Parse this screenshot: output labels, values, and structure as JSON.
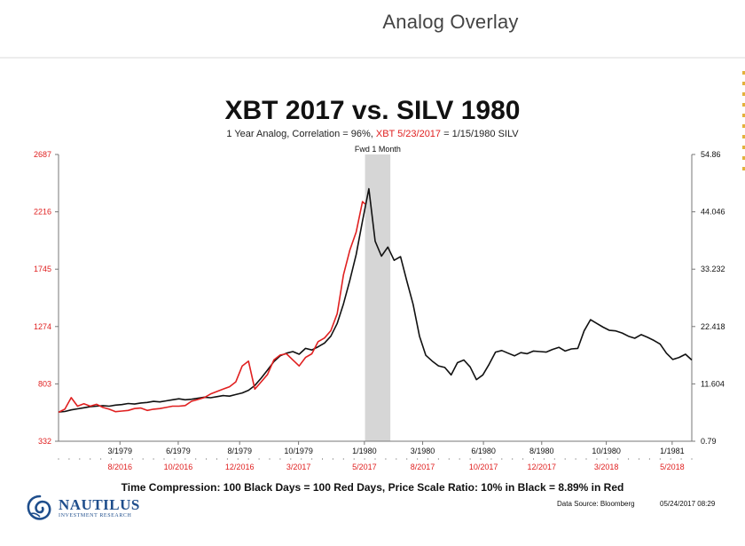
{
  "slide_title": "Analog Overlay",
  "footer_note": "Time Compression: 100 Black Days = 100 Red Days,  Price Scale Ratio: 10% in Black = 8.89% in Red",
  "data_source": "Data Source: Bloomberg",
  "timestamp": "05/24/2017 08:29",
  "logo": {
    "name": "NAUTILUS",
    "subtitle": "INVESTMENT RESEARCH"
  },
  "colors": {
    "black_series": "#111111",
    "red_series": "#e02020",
    "shade": "#d6d6d6"
  },
  "chart_data": {
    "type": "line",
    "title": "XBT 2017 vs. SILV 1980",
    "subtitle_parts": [
      "1 Year Analog, Correlation = 96%, ",
      "XBT 5/23/2017",
      "  = 1/15/1980 SILV"
    ],
    "annotation": "Fwd 1 Month",
    "grid": false,
    "x_range": [
      0,
      100
    ],
    "shaded_region": [
      48.4,
      52.4
    ],
    "top_ticks": [
      {
        "x": 9.7,
        "label": "3/1979"
      },
      {
        "x": 18.9,
        "label": "6/1979"
      },
      {
        "x": 28.6,
        "label": "8/1979"
      },
      {
        "x": 37.9,
        "label": "10/1979"
      },
      {
        "x": 48.3,
        "label": "1/1980"
      },
      {
        "x": 57.5,
        "label": "3/1980"
      },
      {
        "x": 67.1,
        "label": "6/1980"
      },
      {
        "x": 76.3,
        "label": "8/1980"
      },
      {
        "x": 86.5,
        "label": "10/1980"
      },
      {
        "x": 96.9,
        "label": "1/1981"
      }
    ],
    "bottom_ticks": [
      {
        "x": 9.7,
        "label": "8/2016"
      },
      {
        "x": 18.9,
        "label": "10/2016"
      },
      {
        "x": 28.6,
        "label": "12/2016"
      },
      {
        "x": 37.9,
        "label": "3/2017"
      },
      {
        "x": 48.3,
        "label": "5/2017"
      },
      {
        "x": 57.5,
        "label": "8/2017"
      },
      {
        "x": 67.1,
        "label": "10/2017"
      },
      {
        "x": 76.3,
        "label": "12/2017"
      },
      {
        "x": 86.5,
        "label": "3/2018"
      },
      {
        "x": 96.9,
        "label": "5/2018"
      }
    ],
    "left_axis": {
      "ticks": [
        "332",
        "803",
        "1274",
        "1745",
        "2216",
        "2687"
      ],
      "range": [
        332,
        2687
      ]
    },
    "right_axis": {
      "ticks": [
        "0.79",
        "11.604",
        "22.418",
        "33.232",
        "44.046",
        "54.86"
      ],
      "range": [
        0.79,
        54.86
      ]
    },
    "series": [
      {
        "axis": "right",
        "x": [
          0,
          1,
          2,
          3,
          4,
          5,
          6,
          7,
          8,
          9,
          10,
          11,
          12,
          13,
          14,
          15,
          16,
          17,
          18,
          19,
          20,
          21,
          22,
          23,
          24,
          25,
          26,
          27,
          28,
          29,
          30,
          31,
          32,
          33,
          34,
          35,
          36,
          37,
          38,
          39,
          40,
          41,
          42,
          43,
          44,
          45,
          46,
          47,
          48,
          49,
          50,
          51,
          52,
          53,
          54,
          55,
          56,
          57,
          58,
          59,
          60,
          61,
          62,
          63,
          64,
          65,
          66,
          67,
          68,
          69,
          70,
          71,
          72,
          73,
          74,
          75,
          76,
          77,
          78,
          79,
          80,
          81,
          82,
          83,
          84,
          85,
          86,
          87,
          88,
          89,
          90,
          91,
          92,
          93,
          94,
          95,
          96,
          97,
          98,
          99,
          100
        ],
        "values": [
          6.3,
          6.4,
          6.7,
          6.9,
          7.1,
          7.3,
          7.4,
          7.5,
          7.4,
          7.6,
          7.7,
          7.9,
          7.8,
          8.0,
          8.1,
          8.3,
          8.2,
          8.4,
          8.6,
          8.8,
          8.6,
          8.7,
          8.9,
          9.1,
          9.0,
          9.2,
          9.4,
          9.3,
          9.6,
          9.9,
          10.4,
          11.3,
          12.7,
          14.2,
          15.8,
          16.9,
          17.4,
          17.7,
          17.2,
          18.3,
          18.0,
          18.6,
          19.3,
          20.6,
          23.0,
          26.7,
          31.1,
          36.0,
          42.3,
          48.4,
          38.5,
          35.7,
          37.4,
          34.9,
          35.6,
          31.0,
          26.6,
          20.6,
          17.0,
          15.9,
          15.0,
          14.7,
          13.3,
          15.6,
          16.1,
          14.8,
          12.4,
          13.3,
          15.3,
          17.6,
          17.9,
          17.4,
          16.9,
          17.5,
          17.3,
          17.8,
          17.7,
          17.6,
          18.1,
          18.5,
          17.8,
          18.2,
          18.3,
          21.6,
          23.7,
          23.0,
          22.3,
          21.7,
          21.6,
          21.2,
          20.6,
          20.2,
          20.9,
          20.4,
          19.8,
          19.1,
          17.4,
          16.2,
          16.6,
          17.2,
          16.1
        ]
      },
      {
        "axis": "left",
        "x": [
          0,
          1,
          2,
          3,
          4,
          5,
          6,
          7,
          8,
          9,
          10,
          11,
          12,
          13,
          14,
          15,
          16,
          17,
          18,
          19,
          20,
          21,
          22,
          23,
          24,
          25,
          26,
          27,
          28,
          29,
          30,
          31,
          32,
          33,
          34,
          35,
          36,
          37,
          38,
          39,
          40,
          41,
          42,
          43,
          44,
          45,
          46,
          47,
          48,
          48.4
        ],
        "values": [
          570,
          595,
          690,
          620,
          640,
          620,
          635,
          610,
          595,
          575,
          580,
          585,
          600,
          605,
          585,
          595,
          600,
          610,
          620,
          620,
          625,
          660,
          675,
          690,
          720,
          740,
          760,
          780,
          820,
          950,
          990,
          760,
          820,
          880,
          1000,
          1040,
          1050,
          1000,
          950,
          1020,
          1050,
          1150,
          1180,
          1240,
          1380,
          1700,
          1900,
          2050,
          2300,
          2280
        ]
      }
    ]
  }
}
